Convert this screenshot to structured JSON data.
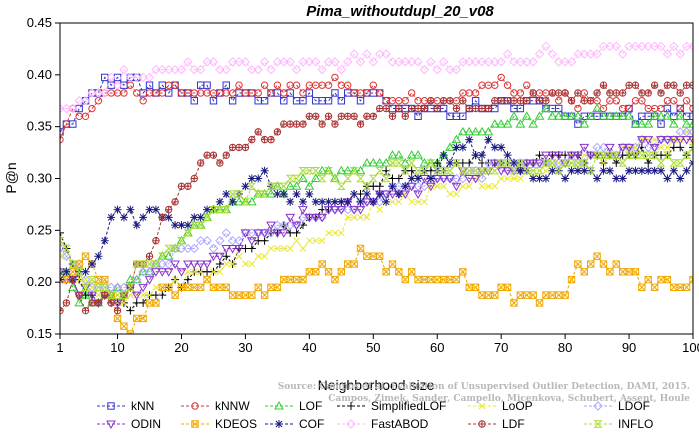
{
  "chart_data": {
    "type": "line",
    "title": "Pima_withoutdupl_20_v08",
    "xlabel": "Neighborhood size",
    "ylabel": "P@n",
    "xlim": [
      1,
      100
    ],
    "ylim": [
      0.15,
      0.45
    ],
    "xticks": [
      1,
      10,
      20,
      30,
      40,
      50,
      60,
      70,
      80,
      90,
      100
    ],
    "yticks": [
      0.15,
      0.2,
      0.25,
      0.3,
      0.35,
      0.4,
      0.45
    ],
    "grid": false,
    "legend_position": "bottom",
    "watermark": [
      "Source: Campos et al. Evaluation of Unsupervised Outlier Detection, DAMI, 2015.",
      "Campos, Zimek, Sander, Campello, Micenkova, Schubert, Assent, Houle"
    ],
    "series": [
      {
        "name": "kNN",
        "color": "#3333cc",
        "marker": "square",
        "keypoints": [
          [
            1,
            0.345
          ],
          [
            3,
            0.36
          ],
          [
            6,
            0.385
          ],
          [
            10,
            0.395
          ],
          [
            15,
            0.39
          ],
          [
            20,
            0.385
          ],
          [
            30,
            0.38
          ],
          [
            40,
            0.38
          ],
          [
            50,
            0.38
          ],
          [
            56,
            0.37
          ],
          [
            62,
            0.36
          ],
          [
            70,
            0.375
          ],
          [
            80,
            0.36
          ],
          [
            90,
            0.36
          ],
          [
            100,
            0.36
          ]
        ]
      },
      {
        "name": "kNNW",
        "color": "#dd3333",
        "marker": "circle",
        "keypoints": [
          [
            1,
            0.345
          ],
          [
            3,
            0.36
          ],
          [
            8,
            0.38
          ],
          [
            15,
            0.385
          ],
          [
            25,
            0.385
          ],
          [
            35,
            0.39
          ],
          [
            45,
            0.39
          ],
          [
            55,
            0.38
          ],
          [
            60,
            0.37
          ],
          [
            70,
            0.39
          ],
          [
            80,
            0.375
          ],
          [
            90,
            0.37
          ],
          [
            100,
            0.37
          ]
        ]
      },
      {
        "name": "LOF",
        "color": "#33cc33",
        "marker": "triangle",
        "keypoints": [
          [
            1,
            0.215
          ],
          [
            5,
            0.18
          ],
          [
            10,
            0.19
          ],
          [
            15,
            0.21
          ],
          [
            20,
            0.24
          ],
          [
            25,
            0.27
          ],
          [
            30,
            0.28
          ],
          [
            40,
            0.3
          ],
          [
            50,
            0.315
          ],
          [
            60,
            0.32
          ],
          [
            65,
            0.345
          ],
          [
            70,
            0.35
          ],
          [
            75,
            0.36
          ],
          [
            85,
            0.36
          ],
          [
            100,
            0.355
          ]
        ]
      },
      {
        "name": "SimplifiedLOF",
        "color": "#000000",
        "marker": "plus",
        "keypoints": [
          [
            1,
            0.245
          ],
          [
            5,
            0.19
          ],
          [
            10,
            0.175
          ],
          [
            15,
            0.19
          ],
          [
            20,
            0.2
          ],
          [
            25,
            0.215
          ],
          [
            30,
            0.235
          ],
          [
            40,
            0.255
          ],
          [
            45,
            0.28
          ],
          [
            50,
            0.295
          ],
          [
            55,
            0.305
          ],
          [
            60,
            0.315
          ],
          [
            70,
            0.32
          ],
          [
            80,
            0.32
          ],
          [
            90,
            0.32
          ],
          [
            100,
            0.33
          ]
        ]
      },
      {
        "name": "LoOP",
        "color": "#e8e833",
        "marker": "x",
        "keypoints": [
          [
            1,
            0.23
          ],
          [
            5,
            0.2
          ],
          [
            10,
            0.18
          ],
          [
            15,
            0.19
          ],
          [
            20,
            0.2
          ],
          [
            30,
            0.22
          ],
          [
            40,
            0.24
          ],
          [
            50,
            0.27
          ],
          [
            55,
            0.28
          ],
          [
            60,
            0.29
          ],
          [
            70,
            0.3
          ],
          [
            80,
            0.315
          ],
          [
            90,
            0.33
          ],
          [
            100,
            0.34
          ]
        ]
      },
      {
        "name": "LDOF",
        "color": "#aaaaff",
        "marker": "diamond",
        "keypoints": [
          [
            1,
            0.235
          ],
          [
            5,
            0.2
          ],
          [
            10,
            0.19
          ],
          [
            15,
            0.21
          ],
          [
            20,
            0.23
          ],
          [
            30,
            0.245
          ],
          [
            40,
            0.265
          ],
          [
            50,
            0.28
          ],
          [
            60,
            0.3
          ],
          [
            70,
            0.31
          ],
          [
            80,
            0.315
          ],
          [
            90,
            0.33
          ],
          [
            100,
            0.345
          ]
        ]
      },
      {
        "name": "ODIN",
        "color": "#8833cc",
        "marker": "triangle-down",
        "keypoints": [
          [
            1,
            0.21
          ],
          [
            5,
            0.19
          ],
          [
            10,
            0.185
          ],
          [
            15,
            0.2
          ],
          [
            20,
            0.215
          ],
          [
            30,
            0.24
          ],
          [
            40,
            0.265
          ],
          [
            50,
            0.28
          ],
          [
            60,
            0.295
          ],
          [
            70,
            0.31
          ],
          [
            80,
            0.32
          ],
          [
            90,
            0.33
          ],
          [
            100,
            0.34
          ]
        ]
      },
      {
        "name": "KDEOS",
        "color": "#f0a800",
        "marker": "square-x",
        "keypoints": [
          [
            1,
            0.2
          ],
          [
            5,
            0.22
          ],
          [
            8,
            0.2
          ],
          [
            10,
            0.17
          ],
          [
            12,
            0.155
          ],
          [
            15,
            0.18
          ],
          [
            20,
            0.195
          ],
          [
            25,
            0.2
          ],
          [
            30,
            0.185
          ],
          [
            35,
            0.2
          ],
          [
            40,
            0.21
          ],
          [
            45,
            0.21
          ],
          [
            48,
            0.225
          ],
          [
            52,
            0.215
          ],
          [
            58,
            0.2
          ],
          [
            63,
            0.205
          ],
          [
            68,
            0.19
          ],
          [
            72,
            0.185
          ],
          [
            80,
            0.19
          ],
          [
            82,
            0.215
          ],
          [
            86,
            0.22
          ],
          [
            90,
            0.21
          ],
          [
            92,
            0.2
          ],
          [
            96,
            0.195
          ],
          [
            100,
            0.2
          ]
        ]
      },
      {
        "name": "COF",
        "color": "#1a1a80",
        "marker": "star",
        "keypoints": [
          [
            1,
            0.2
          ],
          [
            5,
            0.21
          ],
          [
            8,
            0.24
          ],
          [
            10,
            0.27
          ],
          [
            13,
            0.26
          ],
          [
            15,
            0.27
          ],
          [
            20,
            0.25
          ],
          [
            25,
            0.27
          ],
          [
            30,
            0.29
          ],
          [
            33,
            0.31
          ],
          [
            35,
            0.28
          ],
          [
            40,
            0.28
          ],
          [
            50,
            0.28
          ],
          [
            55,
            0.29
          ],
          [
            60,
            0.31
          ],
          [
            65,
            0.33
          ],
          [
            70,
            0.33
          ],
          [
            75,
            0.3
          ],
          [
            80,
            0.305
          ],
          [
            90,
            0.305
          ],
          [
            100,
            0.31
          ]
        ]
      },
      {
        "name": "FastABOD",
        "color": "#ffb6ff",
        "marker": "diamond",
        "keypoints": [
          [
            1,
            0.36
          ],
          [
            5,
            0.38
          ],
          [
            10,
            0.395
          ],
          [
            15,
            0.405
          ],
          [
            20,
            0.405
          ],
          [
            30,
            0.41
          ],
          [
            40,
            0.41
          ],
          [
            50,
            0.415
          ],
          [
            60,
            0.41
          ],
          [
            70,
            0.415
          ],
          [
            80,
            0.42
          ],
          [
            90,
            0.425
          ],
          [
            100,
            0.425
          ]
        ]
      },
      {
        "name": "LDF",
        "color": "#aa3333",
        "marker": "circle-plus",
        "keypoints": [
          [
            1,
            0.17
          ],
          [
            3,
            0.2
          ],
          [
            5,
            0.17
          ],
          [
            8,
            0.19
          ],
          [
            10,
            0.18
          ],
          [
            12,
            0.2
          ],
          [
            15,
            0.23
          ],
          [
            18,
            0.27
          ],
          [
            20,
            0.29
          ],
          [
            25,
            0.32
          ],
          [
            30,
            0.335
          ],
          [
            35,
            0.345
          ],
          [
            40,
            0.355
          ],
          [
            50,
            0.36
          ],
          [
            55,
            0.365
          ],
          [
            60,
            0.37
          ],
          [
            70,
            0.37
          ],
          [
            80,
            0.38
          ],
          [
            90,
            0.385
          ],
          [
            100,
            0.39
          ]
        ]
      },
      {
        "name": "INFLO",
        "color": "#aadd33",
        "marker": "hourglass",
        "keypoints": [
          [
            1,
            0.24
          ],
          [
            5,
            0.2
          ],
          [
            10,
            0.19
          ],
          [
            15,
            0.22
          ],
          [
            20,
            0.24
          ],
          [
            25,
            0.27
          ],
          [
            30,
            0.285
          ],
          [
            35,
            0.3
          ],
          [
            40,
            0.3
          ],
          [
            50,
            0.3
          ],
          [
            55,
            0.31
          ],
          [
            60,
            0.31
          ],
          [
            70,
            0.31
          ],
          [
            80,
            0.315
          ],
          [
            90,
            0.32
          ],
          [
            100,
            0.325
          ]
        ]
      }
    ]
  }
}
